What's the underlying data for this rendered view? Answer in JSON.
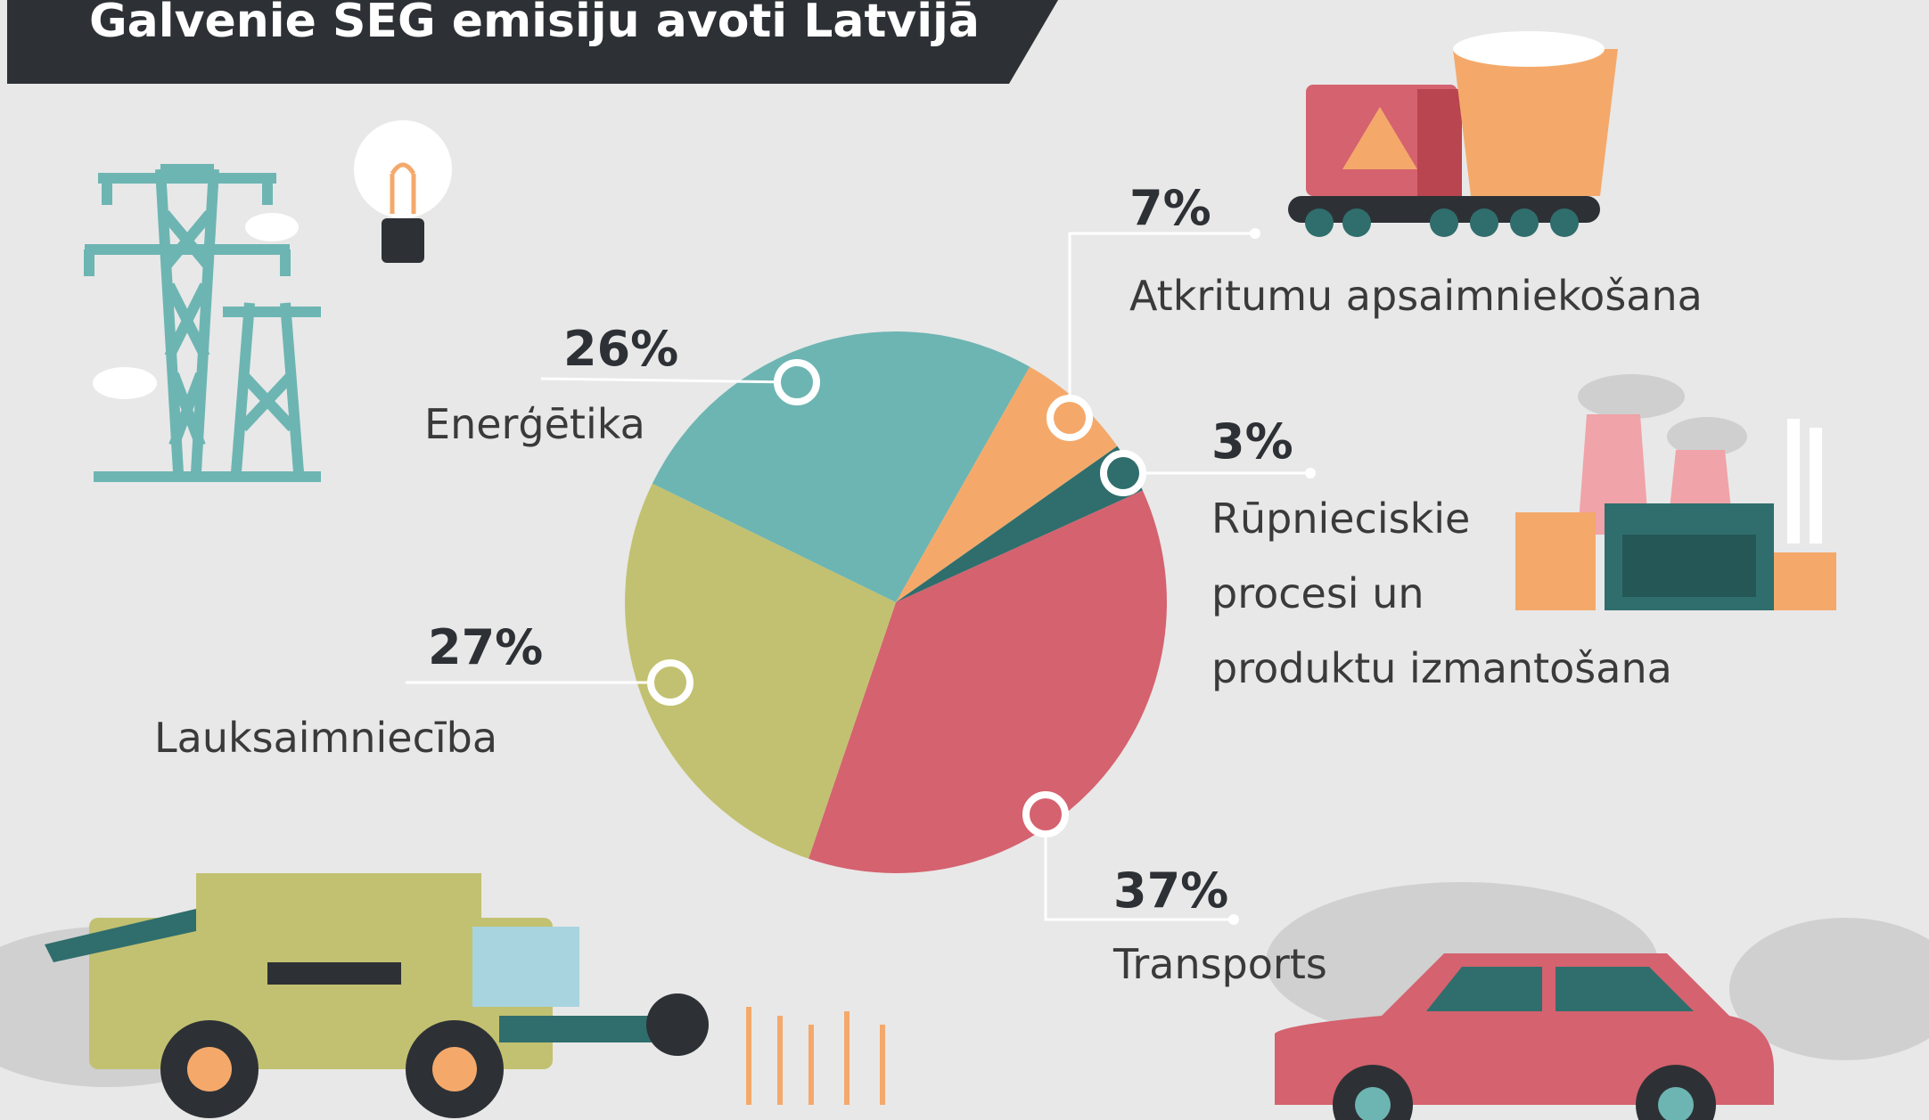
{
  "chart_data": {
    "type": "pie",
    "title": "Galvenie SEG emisiju avoti Latvijā",
    "categories": [
      "Enerģētika",
      "Atkritumu apsaimniekošana",
      "Rūpnieciskie\nprocesi un\nproduktu izmantošana",
      "Transports",
      "Lauksaimniecība"
    ],
    "values": [
      26,
      7,
      3,
      37,
      27
    ],
    "value_labels": [
      "26%",
      "7%",
      "3%",
      "37%",
      "27%"
    ],
    "colors": [
      "#6db5b2",
      "#f4a96b",
      "#2f6e6c",
      "#d5626f",
      "#c2c171"
    ]
  }
}
